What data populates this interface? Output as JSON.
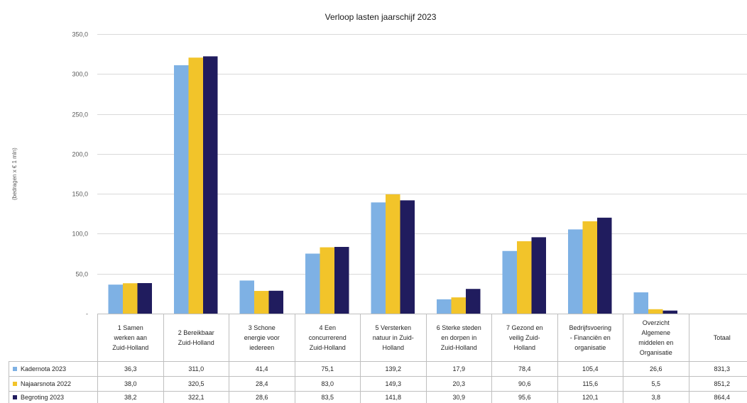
{
  "chart_data": {
    "type": "bar",
    "title": "Verloop lasten jaarschijf 2023",
    "xlabel": "",
    "ylabel": "(bedragen x € 1 mln)",
    "ylim": [
      0,
      350
    ],
    "yticks": [
      {
        "value": 0,
        "label": "-"
      },
      {
        "value": 50,
        "label": "50,0"
      },
      {
        "value": 100,
        "label": "100,0"
      },
      {
        "value": 150,
        "label": "150,0"
      },
      {
        "value": 200,
        "label": "200,0"
      },
      {
        "value": 250,
        "label": "250,0"
      },
      {
        "value": 300,
        "label": "300,0"
      },
      {
        "value": 350,
        "label": "350,0"
      }
    ],
    "grid": true,
    "legend": "bottom",
    "categories": [
      "1 Samen\nwerken aan\nZuid-Holland",
      "2 Bereikbaar\nZuid-Holland",
      "3 Schone\nenergie voor\niedereen",
      "4 Een\nconcurrerend\nZuid-Holland",
      "5 Versterken\nnatuur in Zuid-\nHolland",
      "6 Sterke steden\nen dorpen in\nZuid-Holland",
      "7 Gezond en\nveilig Zuid-\nHolland",
      "Bedrijfsvoering\n- Financiën en\norganisatie",
      "Overzicht\nAlgemene\nmiddelen en\nOrganisatie"
    ],
    "total_label": "Totaal",
    "series": [
      {
        "name": "Kadernota 2023",
        "color": "#7EB1E4",
        "values": [
          36.3,
          311.0,
          41.4,
          75.1,
          139.2,
          17.9,
          78.4,
          105.4,
          26.6
        ],
        "total": 831.3
      },
      {
        "name": "Najaarsnota 2022",
        "color": "#F2C42A",
        "values": [
          38.0,
          320.5,
          28.4,
          83.0,
          149.3,
          20.3,
          90.6,
          115.6,
          5.5
        ],
        "total": 851.2
      },
      {
        "name": "Begroting 2023",
        "color": "#201C5E",
        "values": [
          38.2,
          322.1,
          28.6,
          83.5,
          141.8,
          30.9,
          95.6,
          120.1,
          3.8
        ],
        "total": 864.4
      }
    ]
  }
}
